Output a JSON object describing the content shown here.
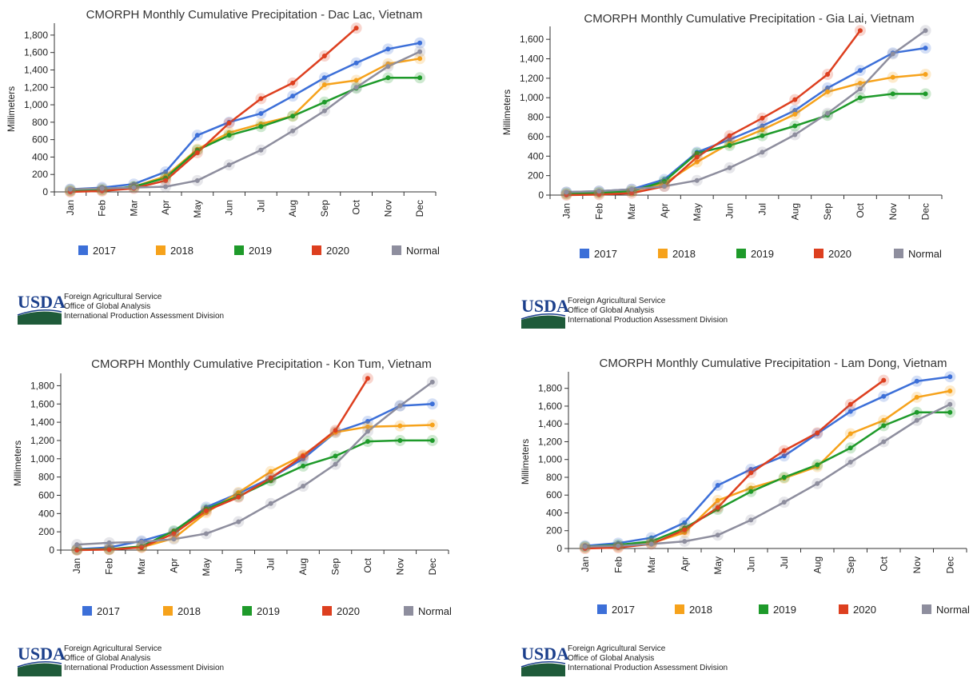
{
  "agency": {
    "logo_text": "USDA",
    "lines": [
      "Foreign Agricultural Service",
      "Office of Global Analysis",
      "International Production Assessment Division"
    ]
  },
  "colors": {
    "2017": "#3c6fd8",
    "2018": "#f6a21b",
    "2019": "#1e9a2a",
    "2020": "#dd3f1f",
    "Normal": "#8e8e9e"
  },
  "chart_data": [
    {
      "type": "line",
      "title": "CMORPH Monthly Cumulative Precipitation - Dac Lac, Vietnam",
      "ylabel": "Millimeters",
      "categories": [
        "Jan",
        "Feb",
        "Mar",
        "Apr",
        "May",
        "Jun",
        "Jul",
        "Aug",
        "Sep",
        "Oct",
        "Nov",
        "Dec"
      ],
      "yticks": [
        0,
        200,
        400,
        600,
        800,
        1000,
        1200,
        1400,
        1600,
        1800
      ],
      "ytick_labels": [
        "0",
        "200",
        "400",
        "600",
        "800",
        "1,000",
        "1,200",
        "1,400",
        "1,600",
        "1,800"
      ],
      "ylim": [
        0,
        1900
      ],
      "legend_position": "bottom",
      "series": [
        {
          "name": "2017",
          "values": [
            30,
            50,
            90,
            230,
            650,
            800,
            900,
            1100,
            1310,
            1480,
            1640,
            1710
          ]
        },
        {
          "name": "2018",
          "values": [
            10,
            20,
            60,
            180,
            490,
            680,
            780,
            870,
            1230,
            1280,
            1470,
            1530
          ]
        },
        {
          "name": "2019",
          "values": [
            15,
            25,
            60,
            160,
            480,
            650,
            750,
            870,
            1030,
            1190,
            1310,
            1310
          ]
        },
        {
          "name": "2020",
          "values": [
            0,
            10,
            40,
            130,
            450,
            790,
            1070,
            1250,
            1560,
            1880,
            null,
            null
          ]
        },
        {
          "name": "Normal",
          "values": [
            30,
            40,
            50,
            60,
            130,
            310,
            480,
            700,
            930,
            1200,
            1440,
            1610
          ]
        }
      ]
    },
    {
      "type": "line",
      "title": "CMORPH Monthly Cumulative Precipitation - Gia Lai, Vietnam",
      "ylabel": "Millimeters",
      "categories": [
        "Jan",
        "Feb",
        "Mar",
        "Apr",
        "May",
        "Jun",
        "Jul",
        "Aug",
        "Sep",
        "Oct",
        "Nov",
        "Dec"
      ],
      "yticks": [
        0,
        200,
        400,
        600,
        800,
        1000,
        1200,
        1400,
        1600
      ],
      "ytick_labels": [
        "0",
        "200",
        "400",
        "600",
        "800",
        "1,000",
        "1,200",
        "1,400",
        "1,600"
      ],
      "ylim": [
        0,
        1700
      ],
      "legend_position": "bottom",
      "series": [
        {
          "name": "2017",
          "values": [
            30,
            40,
            60,
            160,
            440,
            570,
            710,
            870,
            1100,
            1280,
            1460,
            1510
          ]
        },
        {
          "name": "2018",
          "values": [
            10,
            20,
            40,
            120,
            340,
            530,
            670,
            830,
            1060,
            1150,
            1210,
            1240
          ]
        },
        {
          "name": "2019",
          "values": [
            15,
            25,
            40,
            140,
            430,
            510,
            610,
            710,
            820,
            1000,
            1040,
            1040
          ]
        },
        {
          "name": "2020",
          "values": [
            0,
            5,
            20,
            90,
            390,
            610,
            790,
            980,
            1240,
            1690,
            null,
            null
          ]
        },
        {
          "name": "Normal",
          "values": [
            30,
            40,
            60,
            90,
            150,
            280,
            440,
            620,
            840,
            1090,
            1450,
            1690
          ]
        }
      ]
    },
    {
      "type": "line",
      "title": "CMORPH Monthly Cumulative Precipitation - Kon Tum, Vietnam",
      "ylabel": "Millimeters",
      "categories": [
        "Jan",
        "Feb",
        "Mar",
        "Apr",
        "May",
        "Jun",
        "Jul",
        "Aug",
        "Sep",
        "Oct",
        "Nov",
        "Dec"
      ],
      "yticks": [
        0,
        200,
        400,
        600,
        800,
        1000,
        1200,
        1400,
        1600,
        1800
      ],
      "ytick_labels": [
        "0",
        "200",
        "400",
        "600",
        "800",
        "1,000",
        "1,200",
        "1,400",
        "1,600",
        "1,800"
      ],
      "ylim": [
        0,
        1900
      ],
      "legend_position": "bottom",
      "series": [
        {
          "name": "2017",
          "values": [
            10,
            30,
            100,
            200,
            470,
            620,
            790,
            1000,
            1290,
            1410,
            1580,
            1600
          ]
        },
        {
          "name": "2018",
          "values": [
            5,
            10,
            30,
            130,
            410,
            630,
            860,
            1040,
            1290,
            1350,
            1360,
            1370
          ]
        },
        {
          "name": "2019",
          "values": [
            5,
            10,
            40,
            210,
            450,
            590,
            760,
            920,
            1030,
            1190,
            1200,
            1200
          ]
        },
        {
          "name": "2020",
          "values": [
            0,
            5,
            30,
            180,
            430,
            580,
            790,
            1030,
            1310,
            1880,
            null,
            null
          ]
        },
        {
          "name": "Normal",
          "values": [
            60,
            80,
            90,
            120,
            180,
            310,
            510,
            700,
            940,
            1300,
            1580,
            1840
          ]
        }
      ]
    },
    {
      "type": "line",
      "title": "CMORPH Monthly Cumulative Precipitation - Lam Dong, Vietnam",
      "ylabel": "Millimeters",
      "categories": [
        "Jan",
        "Feb",
        "Mar",
        "Apr",
        "May",
        "Jun",
        "Jul",
        "Aug",
        "Sep",
        "Oct",
        "Nov",
        "Dec"
      ],
      "yticks": [
        0,
        200,
        400,
        600,
        800,
        1000,
        1200,
        1400,
        1600,
        1800
      ],
      "ytick_labels": [
        "0",
        "200",
        "400",
        "600",
        "800",
        "1,000",
        "1,200",
        "1,400",
        "1,600",
        "1,800"
      ],
      "ylim": [
        0,
        1950
      ],
      "legend_position": "bottom",
      "series": [
        {
          "name": "2017",
          "values": [
            30,
            60,
            120,
            290,
            710,
            890,
            1040,
            1290,
            1540,
            1710,
            1880,
            1930
          ]
        },
        {
          "name": "2018",
          "values": [
            10,
            20,
            60,
            180,
            540,
            680,
            790,
            920,
            1290,
            1440,
            1700,
            1770
          ]
        },
        {
          "name": "2019",
          "values": [
            20,
            40,
            80,
            230,
            440,
            640,
            800,
            940,
            1130,
            1380,
            1530,
            1530
          ]
        },
        {
          "name": "2020",
          "values": [
            0,
            10,
            50,
            210,
            460,
            850,
            1100,
            1300,
            1620,
            1890,
            null,
            null
          ]
        },
        {
          "name": "Normal",
          "values": [
            20,
            30,
            50,
            80,
            150,
            320,
            520,
            730,
            970,
            1200,
            1440,
            1620
          ]
        }
      ]
    }
  ]
}
